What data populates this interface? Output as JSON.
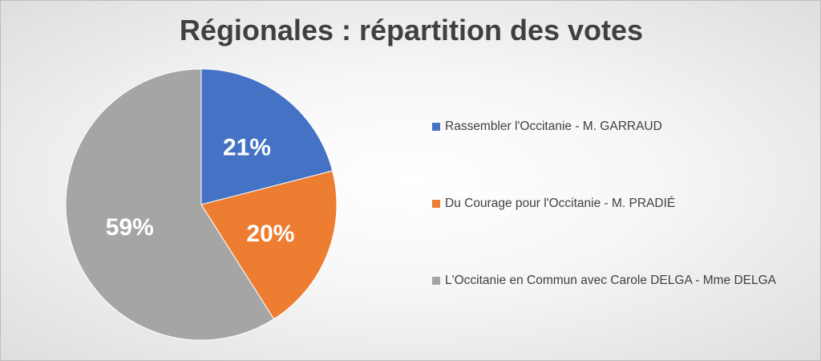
{
  "chart_data": {
    "type": "pie",
    "title": "Régionales : répartition des votes",
    "categories": [
      "Rassembler l'Occitanie - M. GARRAUD",
      "Du Courage pour l'Occitanie - M. PRADIÉ",
      "L'Occitanie en Commun avec Carole DELGA - Mme DELGA"
    ],
    "values": [
      21,
      20,
      59
    ],
    "data_labels": [
      "21%",
      "20%",
      "59%"
    ],
    "colors": [
      "#4472c4",
      "#ed7d31",
      "#a5a5a5"
    ],
    "legend": "right"
  }
}
